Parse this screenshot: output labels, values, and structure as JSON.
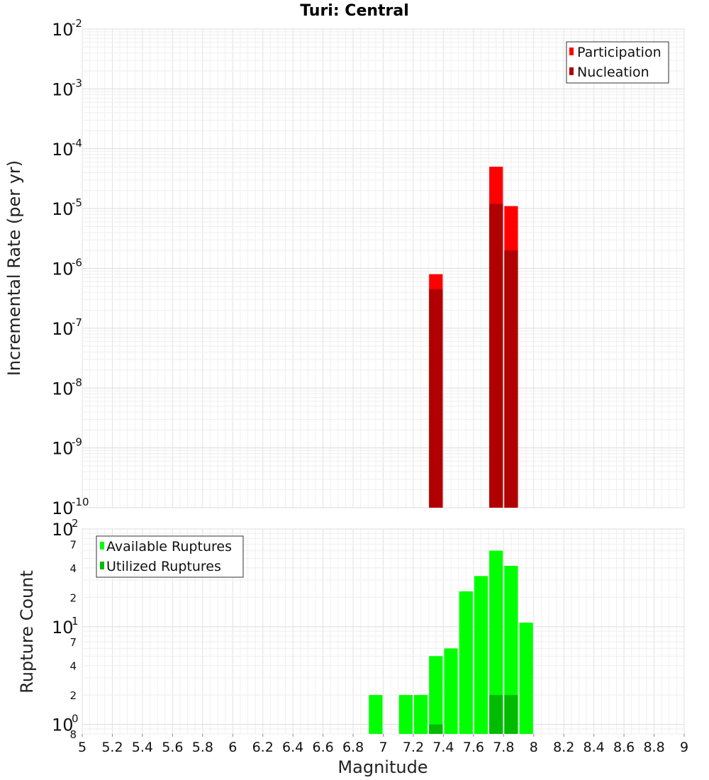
{
  "chart_data": [
    {
      "type": "bar",
      "title": "Turi: Central",
      "ylabel": "Incremental Rate (per yr)",
      "yscale": "log",
      "ylim": [
        1e-10,
        0.01
      ],
      "y_tick_base": "10",
      "y_tick_exponents": [
        "-10",
        "-9",
        "-8",
        "-7",
        "-6",
        "-5",
        "-4",
        "-3",
        "-2"
      ],
      "legend_position": "top-right",
      "grid": true,
      "categories": [
        7.35,
        7.75,
        7.85
      ],
      "series": [
        {
          "name": "Participation",
          "color": "#ff0000",
          "values": [
            8e-07,
            5e-05,
            1.1e-05
          ]
        },
        {
          "name": "Nucleation",
          "color": "#b00000",
          "values": [
            4.5e-07,
            1.2e-05,
            2e-06
          ]
        }
      ]
    },
    {
      "type": "bar",
      "ylabel": "Rupture Count",
      "xlabel": "Magnitude",
      "yscale": "log",
      "ylim": [
        0.8,
        100
      ],
      "xlim": [
        5,
        9
      ],
      "x_ticks": [
        "5",
        "5.2",
        "5.4",
        "5.6",
        "5.8",
        "6",
        "6.2",
        "6.4",
        "6.6",
        "6.8",
        "7",
        "7.2",
        "7.4",
        "7.6",
        "7.8",
        "8",
        "8.2",
        "8.4",
        "8.6",
        "8.8",
        "9"
      ],
      "y_tick_base": "10",
      "y_tick_exponents": [
        "0",
        "1",
        "2"
      ],
      "y_minor_ticks": [
        "8",
        "2",
        "4",
        "7",
        "2",
        "4",
        "7"
      ],
      "legend_position": "top-left",
      "grid": true,
      "categories": [
        6.95,
        7.15,
        7.25,
        7.35,
        7.45,
        7.55,
        7.65,
        7.75,
        7.85,
        7.95
      ],
      "series": [
        {
          "name": "Available Ruptures",
          "color": "#00ff00",
          "values": [
            2,
            2,
            2,
            5,
            6,
            23,
            33,
            60,
            42,
            11
          ]
        },
        {
          "name": "Utilized Ruptures",
          "color": "#00bb00",
          "values": [
            0,
            0,
            0,
            1,
            0,
            0,
            0,
            2,
            2,
            0
          ]
        }
      ]
    }
  ]
}
